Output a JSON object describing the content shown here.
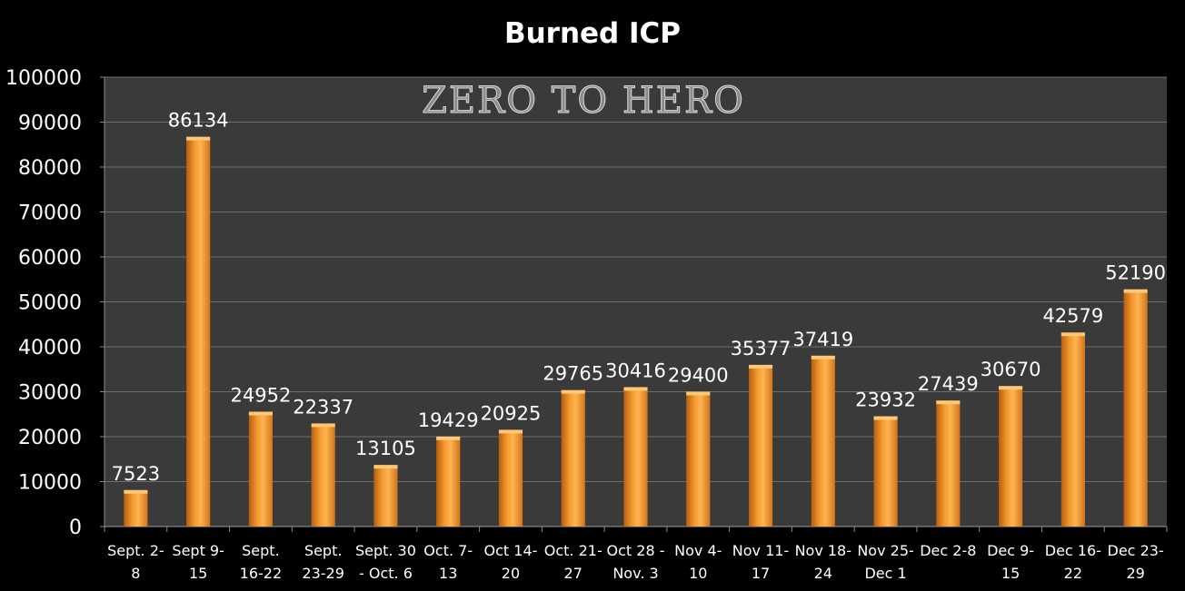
{
  "chart_data": {
    "type": "bar",
    "title": "Burned ICP",
    "watermark": "ZERO TO HERO",
    "xlabel": "",
    "ylabel": "",
    "ylim": [
      0,
      100000
    ],
    "yticks": [
      0,
      10000,
      20000,
      30000,
      40000,
      50000,
      60000,
      70000,
      80000,
      90000,
      100000
    ],
    "grid": true,
    "legend": "none",
    "bar_color": "#f39a2e",
    "plot_background": "#3a3a3a",
    "categories": [
      [
        "Sept. 2-",
        "8"
      ],
      [
        "Sept 9-",
        "15"
      ],
      [
        "Sept.",
        "16-22"
      ],
      [
        "Sept.",
        "23-29"
      ],
      [
        "Sept. 30",
        "- Oct. 6"
      ],
      [
        "Oct. 7-",
        "13"
      ],
      [
        "Oct 14-",
        "20"
      ],
      [
        "Oct. 21-",
        "27"
      ],
      [
        "Oct 28 -",
        "Nov. 3"
      ],
      [
        "Nov 4-",
        "10"
      ],
      [
        "Nov 11-",
        "17"
      ],
      [
        "Nov 18-",
        "24"
      ],
      [
        "Nov 25-",
        "Dec 1"
      ],
      [
        "Dec 2-8",
        ""
      ],
      [
        "Dec 9-",
        "15"
      ],
      [
        "Dec 16-",
        "22"
      ],
      [
        "Dec 23-",
        "29"
      ]
    ],
    "values": [
      7523,
      86134,
      24952,
      22337,
      13105,
      19429,
      20925,
      29765,
      30416,
      29400,
      35377,
      37419,
      23932,
      27439,
      30670,
      42579,
      52190
    ],
    "data_labels": [
      "7523",
      "86134",
      "24952",
      "22337",
      "13105",
      "19429",
      "20925",
      "29765",
      "30416",
      "29400",
      "35377",
      "37419",
      "23932",
      "27439",
      "30670",
      "42579",
      "52190"
    ]
  }
}
